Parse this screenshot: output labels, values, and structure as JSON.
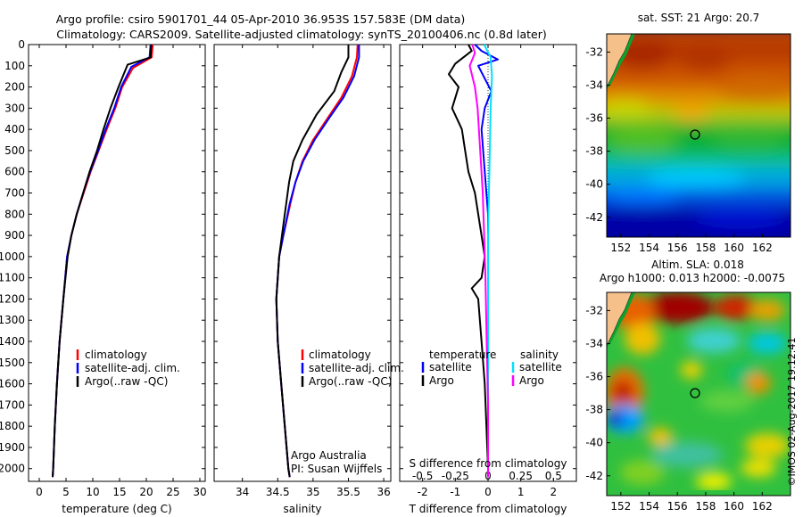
{
  "header": {
    "line1": "Argo profile: csiro 5901701_44 05-Apr-2010 36.953S 157.583E (DM data)",
    "line2": "Climatology: CARS2009. Satellite-adjusted climatology: synTS_20100406.nc (0.8d later)"
  },
  "credit": {
    "line1": "Argo Australia",
    "line2": "PI: Susan Wijffels"
  },
  "copyright": "©IMOS 02-Aug-2017 19:12:41",
  "colors": {
    "climatology": "#ff0000",
    "satellite": "#0000ff",
    "argo": "#000000",
    "sat_salinity": "#00e0ff",
    "argo_salinity": "#ff00ff"
  },
  "chart_data": [
    {
      "type": "line",
      "xlabel": "temperature (deg C)",
      "ylabel": "",
      "xlim": [
        -2,
        31
      ],
      "ylim": [
        2060,
        0
      ],
      "xticks": [
        "0",
        "5",
        "10",
        "15",
        "20",
        "25",
        "30"
      ],
      "yticks": [
        "0",
        "100",
        "200",
        "300",
        "400",
        "500",
        "600",
        "700",
        "800",
        "900",
        "1000",
        "1100",
        "1200",
        "1300",
        "1400",
        "1500",
        "1600",
        "1700",
        "1800",
        "1900",
        "2000"
      ],
      "legend": [
        "climatology",
        "satellite-adj. clim.",
        "Argo(..raw -QC)"
      ],
      "legend_position": "lower-left",
      "series": [
        {
          "name": "climatology",
          "color": "#ff0000",
          "points": [
            [
              21.2,
              0
            ],
            [
              21.0,
              60
            ],
            [
              17.5,
              110
            ],
            [
              15.5,
              200
            ],
            [
              14.2,
              300
            ],
            [
              12.6,
              400
            ],
            [
              11.1,
              500
            ],
            [
              9.6,
              600
            ],
            [
              8.3,
              700
            ],
            [
              7.0,
              800
            ],
            [
              6.0,
              900
            ],
            [
              5.2,
              1000
            ],
            [
              4.5,
              1200
            ],
            [
              3.8,
              1400
            ],
            [
              3.3,
              1600
            ],
            [
              2.9,
              1800
            ],
            [
              2.6,
              2000
            ],
            [
              2.5,
              2040
            ]
          ]
        },
        {
          "name": "satellite-adj. clim.",
          "color": "#0000ff",
          "points": [
            [
              20.8,
              0
            ],
            [
              20.6,
              60
            ],
            [
              17.2,
              105
            ],
            [
              15.3,
              200
            ],
            [
              14.0,
              300
            ],
            [
              12.4,
              400
            ],
            [
              11.0,
              500
            ],
            [
              9.5,
              600
            ],
            [
              8.2,
              700
            ],
            [
              7.0,
              800
            ],
            [
              6.0,
              900
            ],
            [
              5.2,
              1000
            ],
            [
              4.5,
              1200
            ],
            [
              3.8,
              1400
            ],
            [
              3.3,
              1600
            ],
            [
              2.9,
              1800
            ],
            [
              2.6,
              2000
            ],
            [
              2.5,
              2040
            ]
          ]
        },
        {
          "name": "Argo(..raw -QC)",
          "color": "#000000",
          "points": [
            [
              20.9,
              0
            ],
            [
              20.8,
              60
            ],
            [
              16.5,
              95
            ],
            [
              14.8,
              200
            ],
            [
              13.3,
              300
            ],
            [
              12.0,
              400
            ],
            [
              10.8,
              500
            ],
            [
              9.4,
              600
            ],
            [
              8.2,
              700
            ],
            [
              7.0,
              800
            ],
            [
              6.0,
              900
            ],
            [
              5.3,
              1000
            ],
            [
              4.5,
              1200
            ],
            [
              3.8,
              1400
            ],
            [
              3.3,
              1600
            ],
            [
              2.9,
              1800
            ],
            [
              2.6,
              2000
            ],
            [
              2.5,
              2040
            ]
          ]
        }
      ]
    },
    {
      "type": "line",
      "xlabel": "salinity",
      "xlim": [
        33.6,
        36.1
      ],
      "ylim": [
        2060,
        0
      ],
      "xticks": [
        "34",
        "34.5",
        "35",
        "35.5",
        "36"
      ],
      "legend": [
        "climatology",
        "satellite-adj. clim.",
        "Argo(..raw -QC)"
      ],
      "legend_position": "lower-left",
      "series": [
        {
          "name": "climatology",
          "color": "#ff0000",
          "points": [
            [
              35.63,
              0
            ],
            [
              35.62,
              60
            ],
            [
              35.55,
              150
            ],
            [
              35.4,
              250
            ],
            [
              35.2,
              350
            ],
            [
              35.0,
              450
            ],
            [
              34.85,
              550
            ],
            [
              34.75,
              650
            ],
            [
              34.68,
              750
            ],
            [
              34.58,
              900
            ],
            [
              34.52,
              1000
            ],
            [
              34.48,
              1200
            ],
            [
              34.5,
              1400
            ],
            [
              34.55,
              1600
            ],
            [
              34.6,
              1800
            ],
            [
              34.65,
              2000
            ],
            [
              34.67,
              2040
            ]
          ]
        },
        {
          "name": "satellite-adj. clim.",
          "color": "#0000ff",
          "points": [
            [
              35.65,
              0
            ],
            [
              35.65,
              60
            ],
            [
              35.58,
              150
            ],
            [
              35.43,
              250
            ],
            [
              35.22,
              350
            ],
            [
              35.02,
              450
            ],
            [
              34.86,
              550
            ],
            [
              34.75,
              650
            ],
            [
              34.67,
              750
            ],
            [
              34.58,
              900
            ],
            [
              34.52,
              1000
            ],
            [
              34.48,
              1200
            ],
            [
              34.5,
              1400
            ],
            [
              34.55,
              1600
            ],
            [
              34.6,
              1800
            ],
            [
              34.65,
              2000
            ],
            [
              34.67,
              2040
            ]
          ]
        },
        {
          "name": "Argo(..raw -QC)",
          "color": "#000000",
          "points": [
            [
              35.5,
              0
            ],
            [
              35.5,
              60
            ],
            [
              35.4,
              130
            ],
            [
              35.3,
              220
            ],
            [
              35.05,
              330
            ],
            [
              34.85,
              450
            ],
            [
              34.72,
              550
            ],
            [
              34.66,
              650
            ],
            [
              34.62,
              750
            ],
            [
              34.56,
              900
            ],
            [
              34.52,
              1000
            ],
            [
              34.48,
              1200
            ],
            [
              34.5,
              1400
            ],
            [
              34.55,
              1600
            ],
            [
              34.6,
              1800
            ],
            [
              34.65,
              2000
            ],
            [
              34.67,
              2040
            ]
          ]
        }
      ]
    },
    {
      "type": "line",
      "xlabel": "T difference from climatology",
      "xlabel_top": "S difference from climatology",
      "xlim_T": [
        -2.7,
        2.7
      ],
      "xticks_T": [
        "-2",
        "-1",
        "0",
        "1",
        "2"
      ],
      "xlim_S": [
        -0.675,
        0.675
      ],
      "xticks_S": [
        "-0.5",
        "-0.25",
        "0",
        "0.25",
        "0.5"
      ],
      "ylim": [
        2060,
        0
      ],
      "legend": {
        "col1_title": "temperature",
        "col1": [
          "satellite",
          "Argo"
        ],
        "col2_title": "salinity",
        "col2": [
          "satellite",
          "Argo"
        ]
      },
      "legend_position": "lower-center",
      "series": [
        {
          "name": "temperature satellite",
          "color": "#0000ff",
          "points": [
            [
              -0.4,
              0
            ],
            [
              -0.2,
              30
            ],
            [
              0.3,
              70
            ],
            [
              -0.3,
              100
            ],
            [
              -0.1,
              160
            ],
            [
              0.1,
              220
            ],
            [
              -0.1,
              300
            ],
            [
              -0.2,
              400
            ],
            [
              -0.1,
              600
            ],
            [
              0,
              800
            ],
            [
              0,
              1000
            ],
            [
              0,
              1400
            ],
            [
              0,
              2000
            ],
            [
              0,
              2040
            ]
          ]
        },
        {
          "name": "temperature Argo",
          "color": "#000000",
          "points": [
            [
              -0.6,
              0
            ],
            [
              -0.5,
              30
            ],
            [
              -1.0,
              90
            ],
            [
              -1.2,
              140
            ],
            [
              -0.9,
              200
            ],
            [
              -1.1,
              300
            ],
            [
              -0.8,
              400
            ],
            [
              -0.7,
              500
            ],
            [
              -0.6,
              600
            ],
            [
              -0.4,
              700
            ],
            [
              -0.3,
              800
            ],
            [
              -0.2,
              900
            ],
            [
              -0.1,
              1000
            ],
            [
              -0.2,
              1100
            ],
            [
              -0.5,
              1150
            ],
            [
              -0.3,
              1200
            ],
            [
              -0.2,
              1400
            ],
            [
              -0.1,
              1600
            ],
            [
              -0.05,
              1800
            ],
            [
              0,
              2000
            ],
            [
              0,
              2040
            ]
          ]
        },
        {
          "name": "salinity satellite",
          "color": "#00e0ff",
          "points": [
            [
              -0.03,
              0
            ],
            [
              0.02,
              60
            ],
            [
              0.03,
              150
            ],
            [
              0.02,
              300
            ],
            [
              0.01,
              600
            ],
            [
              0,
              900
            ],
            [
              0,
              1400
            ],
            [
              0,
              2040
            ]
          ]
        },
        {
          "name": "salinity Argo",
          "color": "#ff00ff",
          "points": [
            [
              -0.12,
              0
            ],
            [
              -0.1,
              40
            ],
            [
              -0.14,
              100
            ],
            [
              -0.1,
              200
            ],
            [
              -0.08,
              300
            ],
            [
              -0.06,
              500
            ],
            [
              -0.04,
              700
            ],
            [
              -0.03,
              900
            ],
            [
              -0.02,
              1100
            ],
            [
              -0.01,
              1400
            ],
            [
              0,
              1700
            ],
            [
              0,
              2040
            ]
          ]
        }
      ]
    },
    {
      "type": "heatmap",
      "title": "sat. SST: 21 Argo: 20.7",
      "xlim": [
        151,
        164
      ],
      "ylim": [
        -43.2,
        -30.9
      ],
      "xticks": [
        "152",
        "154",
        "156",
        "158",
        "160",
        "162"
      ],
      "yticks": [
        "-32",
        "-34",
        "-36",
        "-38",
        "-40",
        "-42"
      ],
      "profile_location": [
        157.583,
        -36.953
      ]
    },
    {
      "type": "heatmap",
      "title": "Altim. SLA: 0.018",
      "subtitle": "Argo h1000: 0.013 h2000: -0.0075",
      "xlim": [
        151,
        164
      ],
      "ylim": [
        -43.2,
        -30.9
      ],
      "xticks": [
        "152",
        "154",
        "156",
        "158",
        "160",
        "162"
      ],
      "yticks": [
        "-32",
        "-34",
        "-36",
        "-38",
        "-40",
        "-42"
      ],
      "profile_location": [
        157.583,
        -36.953
      ]
    }
  ]
}
